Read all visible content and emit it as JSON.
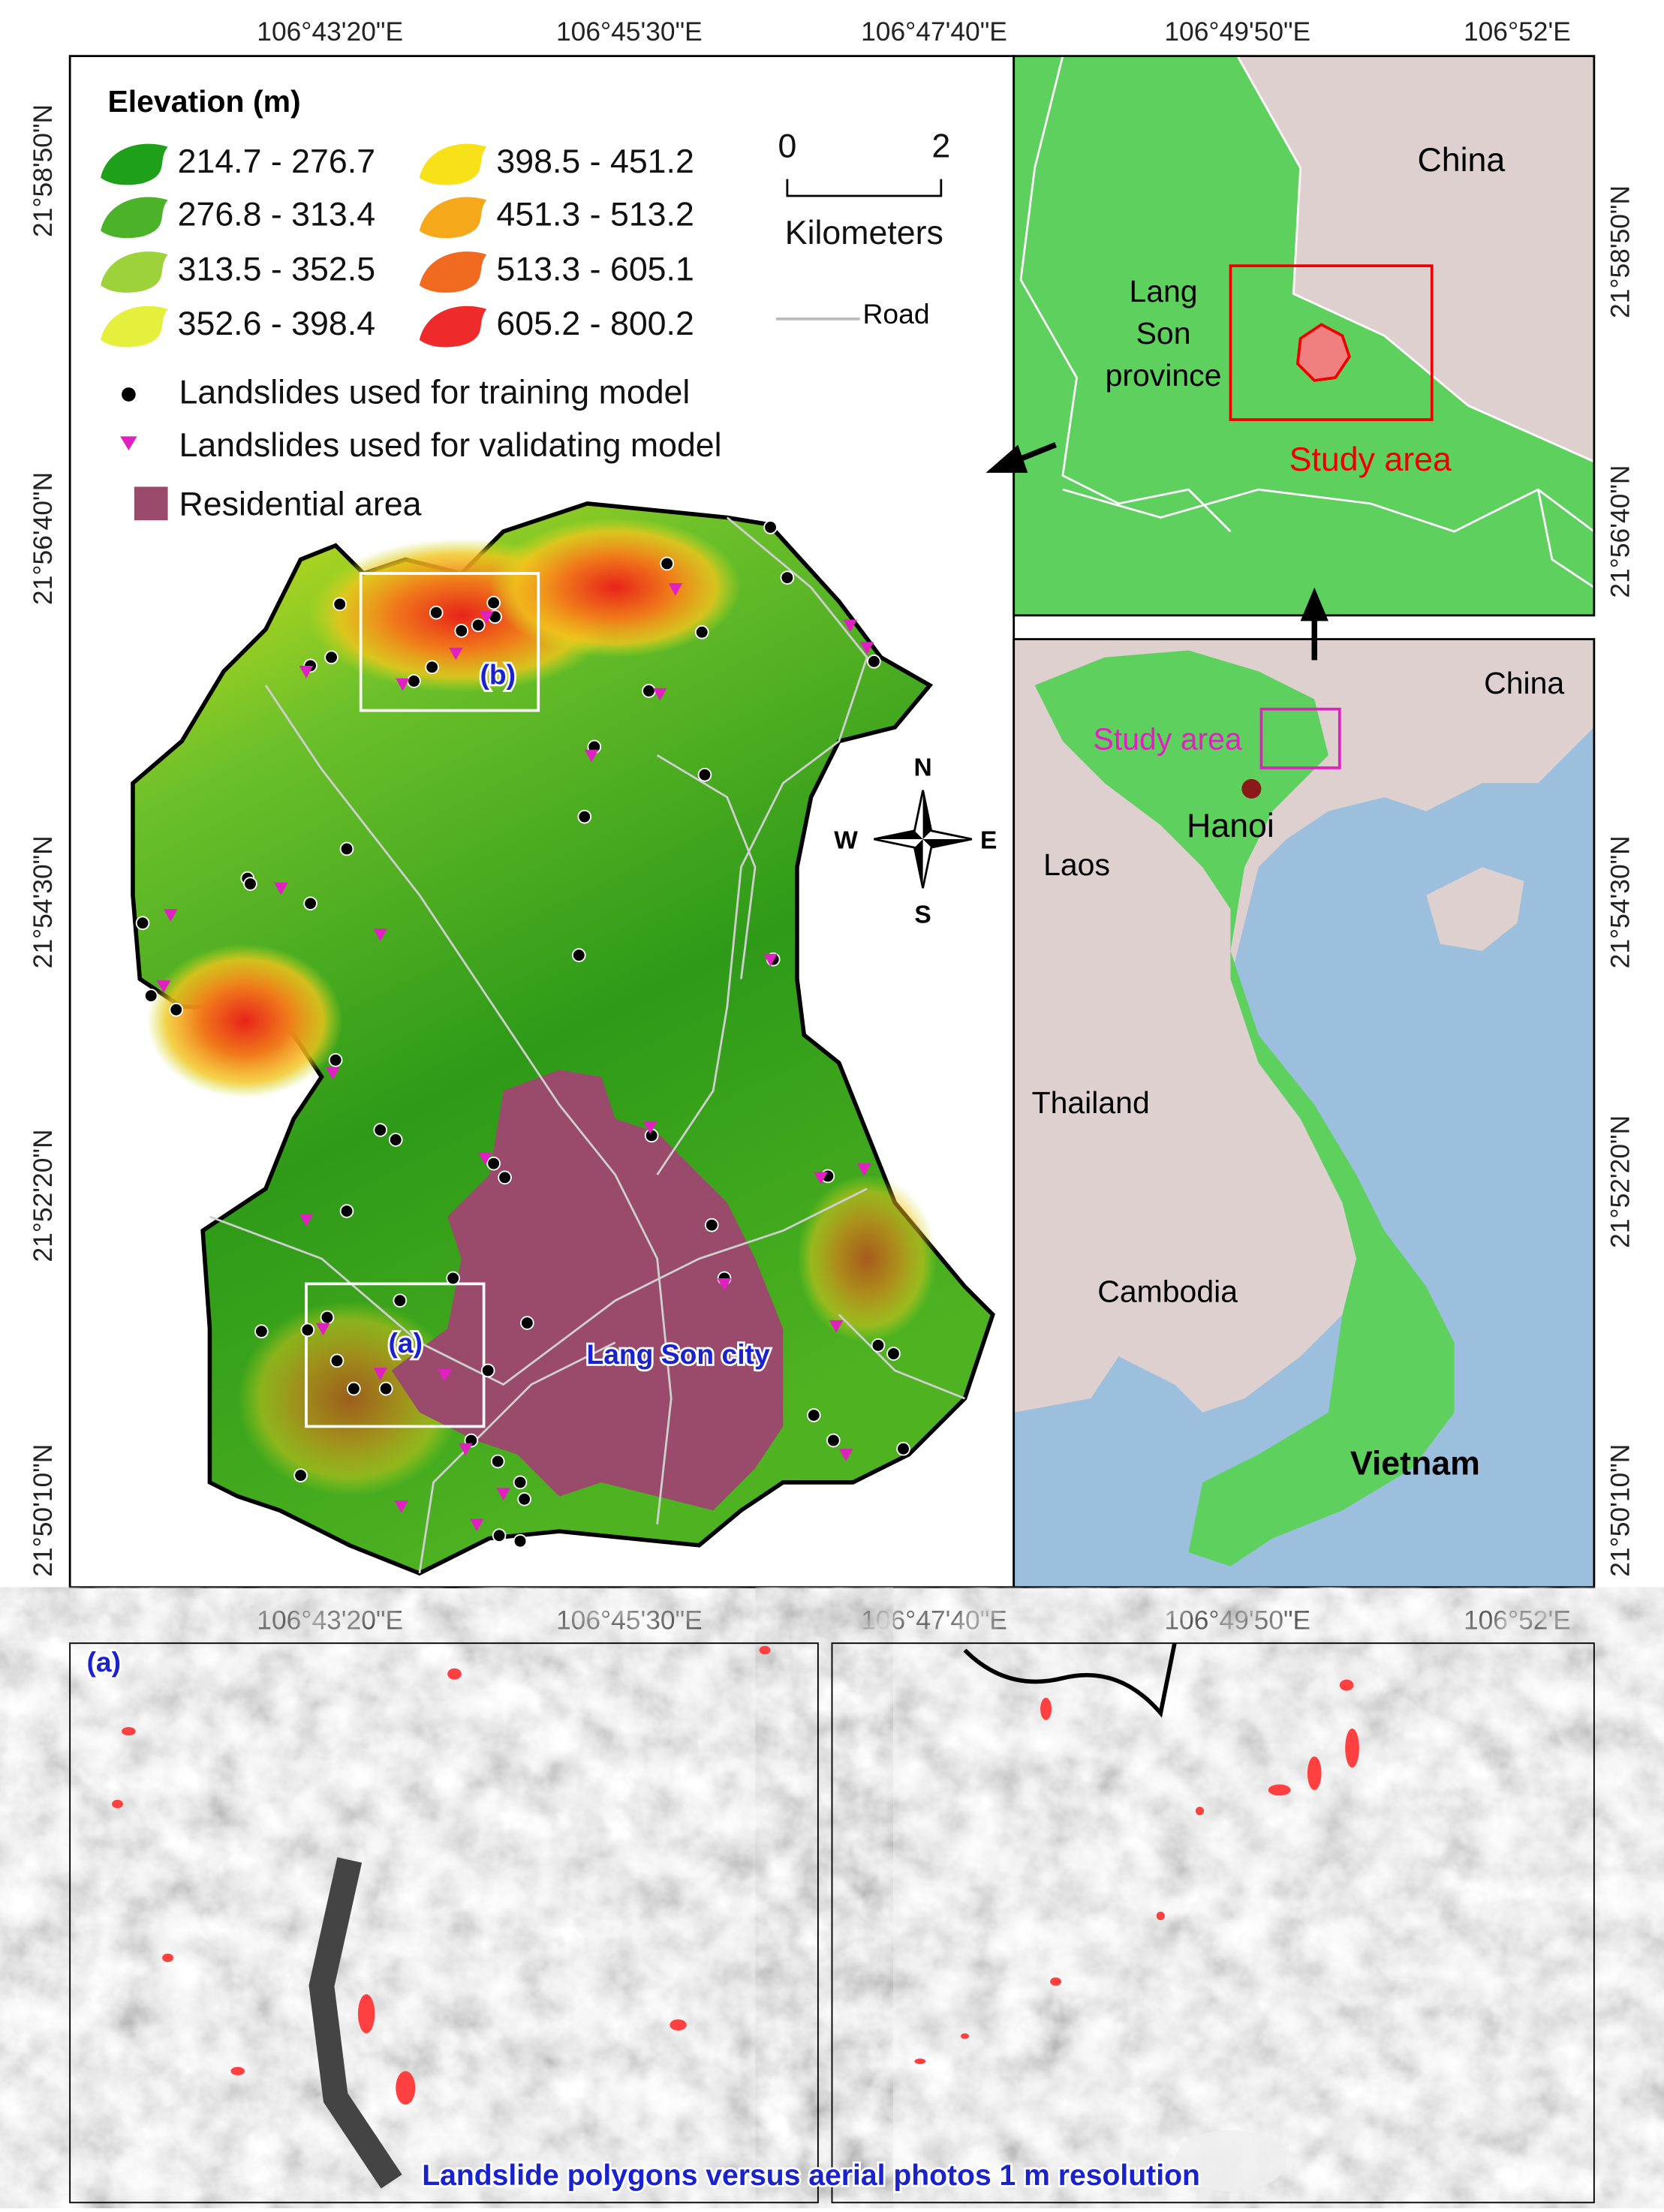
{
  "axis_labels": {
    "top": [
      "106°43'20\"E",
      "106°45'30\"E",
      "106°47'40\"E",
      "106°49'50\"E",
      "106°52'E"
    ],
    "bottom": [
      "106°43'20\"E",
      "106°45'30\"E",
      "106°47'40\"E",
      "106°49'50\"E",
      "106°52'E"
    ],
    "left": [
      "21°58'50\"N",
      "21°56'40\"N",
      "21°54'30\"N",
      "21°52'20\"N",
      "21°50'10\"N"
    ],
    "right": [
      "21°58'50\"N",
      "21°56'40\"N",
      "21°54'30\"N",
      "21°52'20\"N",
      "21°50'10\"N"
    ]
  },
  "legend": {
    "title": "Elevation (m)",
    "classes": [
      "214.7 - 276.7",
      "276.8 - 313.4",
      "313.5 - 352.5",
      "352.6 - 398.4",
      "398.5 - 451.2",
      "451.3 - 513.2",
      "513.3 - 605.1",
      "605.2 - 800.2"
    ],
    "symbols": [
      "Landslides used for training model",
      "Landslides used for validating model",
      "Residential area"
    ]
  },
  "scale_bar": {
    "ticks": [
      "0",
      "2"
    ],
    "unit": "Kilometers"
  },
  "road_label": "Road",
  "main_map": {
    "labels": [
      "(b)",
      "(a)",
      "Lang Son city"
    ],
    "compass": [
      "N",
      "W",
      "E",
      "S"
    ]
  },
  "inset_province": {
    "china": "China",
    "province": [
      "Lang",
      "Son",
      "province"
    ],
    "study_area": "Study area"
  },
  "inset_country": {
    "labels": [
      "China",
      "Study area",
      "Hanoi",
      "Laos",
      "Thailand",
      "Cambodia",
      "Vietnam"
    ]
  },
  "photos": {
    "panel_label": "(a)",
    "caption": "Landslide polygons versus aerial photos 1 m resolution"
  }
}
